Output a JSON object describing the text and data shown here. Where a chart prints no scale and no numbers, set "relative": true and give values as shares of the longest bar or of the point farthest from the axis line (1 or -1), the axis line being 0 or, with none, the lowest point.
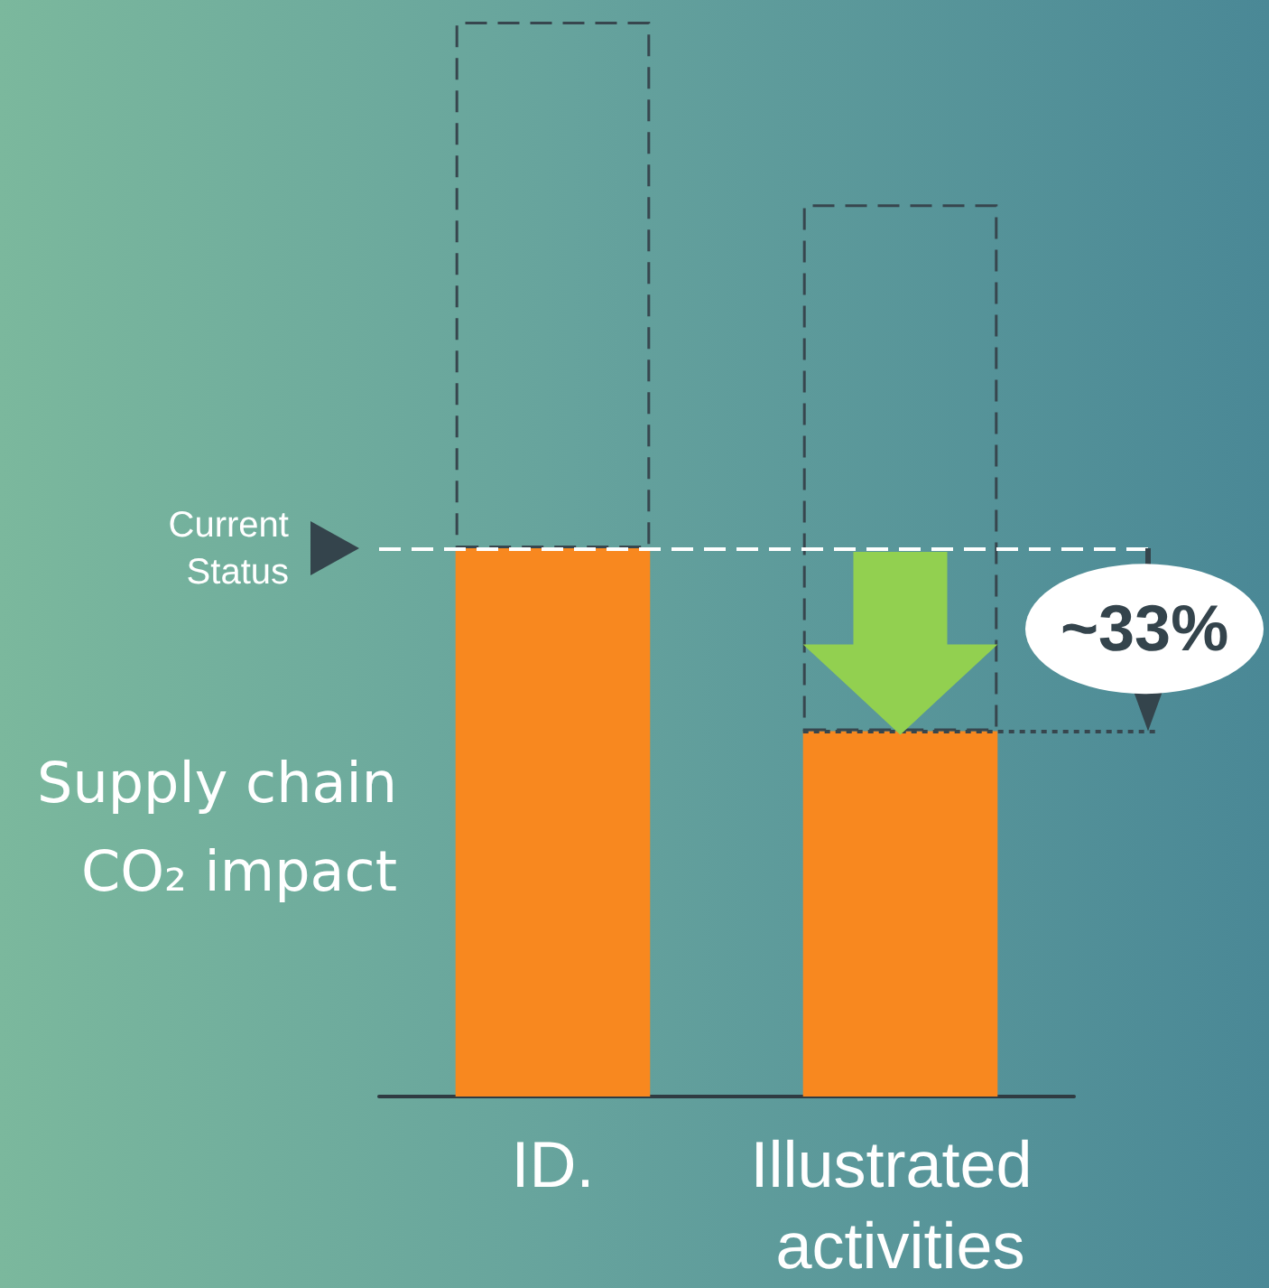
{
  "chart_data": {
    "type": "bar",
    "ylabel": "Supply chain CO₂ impact",
    "categories": [
      "ID.",
      "Illustrated activities"
    ],
    "relative": true,
    "stacked": true,
    "series": [
      {
        "color": "#f8881f",
        "values": [
          0.51,
          0.34
        ]
      },
      {
        "color": "#37464e",
        "values": [
          0.49,
          0.49
        ],
        "line_style": "dashed"
      }
    ],
    "ref_lines": [
      {
        "axis": "y",
        "value": 0.51,
        "label": "Current Status",
        "color": "#ffffff",
        "line_style": "dashed"
      },
      {
        "axis": "y",
        "value": 0.34,
        "color": "#37464e",
        "line_style": "dotted"
      }
    ],
    "annotations": [
      "~33%"
    ]
  }
}
